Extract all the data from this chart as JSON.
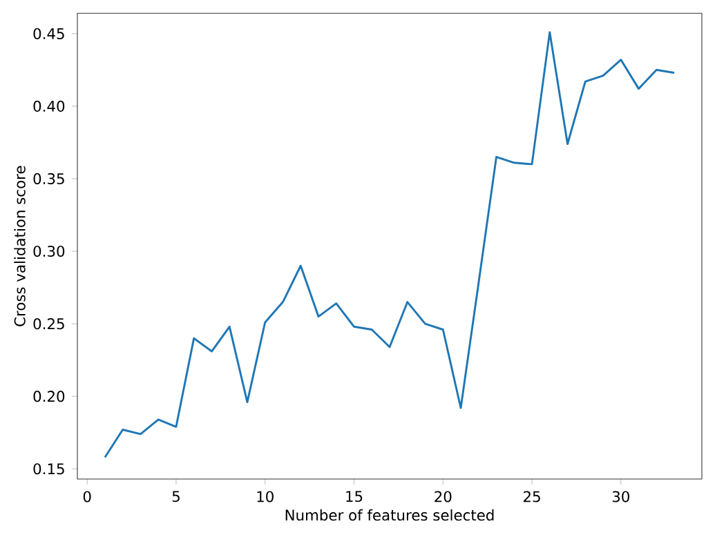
{
  "chart_data": {
    "type": "line",
    "xlabel": "Number of features selected",
    "ylabel": "Cross validation score",
    "x": [
      1,
      2,
      3,
      4,
      5,
      6,
      7,
      8,
      9,
      10,
      11,
      12,
      13,
      14,
      15,
      16,
      17,
      18,
      19,
      20,
      21,
      22,
      23,
      24,
      25,
      26,
      27,
      28,
      29,
      30,
      31,
      32,
      33
    ],
    "series": [
      {
        "color": "#1f77b4",
        "values": [
          0.158,
          0.177,
          0.174,
          0.184,
          0.179,
          0.24,
          0.231,
          0.248,
          0.196,
          0.251,
          0.265,
          0.29,
          0.255,
          0.264,
          0.248,
          0.246,
          0.234,
          0.265,
          0.25,
          0.246,
          0.192,
          0.278,
          0.365,
          0.361,
          0.36,
          0.451,
          0.374,
          0.417,
          0.421,
          0.432,
          0.412,
          0.425,
          0.423
        ]
      }
    ],
    "xlim": [
      -0.55,
      34.55
    ],
    "ylim": [
      0.143,
      0.464
    ],
    "xticks": [
      0,
      5,
      10,
      15,
      20,
      25,
      30
    ],
    "yticks": [
      {
        "value": 0.15,
        "label": "0.15"
      },
      {
        "value": 0.2,
        "label": "0.20"
      },
      {
        "value": 0.25,
        "label": "0.25"
      },
      {
        "value": 0.3,
        "label": "0.30"
      },
      {
        "value": 0.35,
        "label": "0.35"
      },
      {
        "value": 0.4,
        "label": "0.40"
      },
      {
        "value": 0.45,
        "label": "0.45"
      }
    ],
    "marker": "none",
    "line_style": "solid"
  }
}
